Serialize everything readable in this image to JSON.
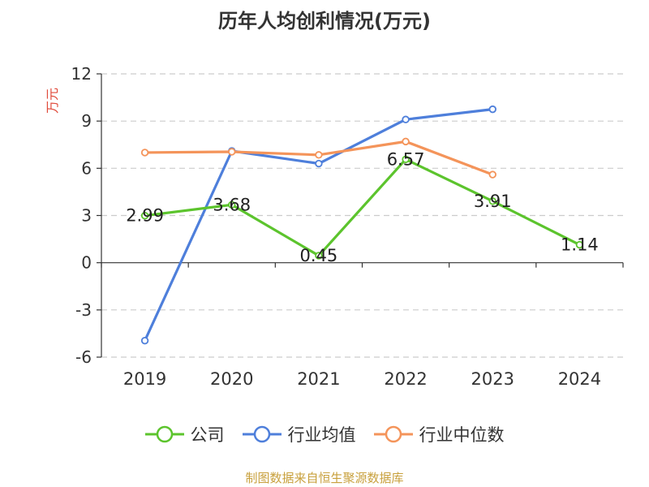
{
  "chart_data": {
    "type": "line",
    "title": "历年人均创利情况(万元)",
    "ylabel": "万元",
    "categories": [
      "2019",
      "2020",
      "2021",
      "2022",
      "2023",
      "2024"
    ],
    "ylim": [
      -6,
      12
    ],
    "yticks": [
      -6,
      -3,
      0,
      3,
      6,
      9,
      12
    ],
    "grid": true,
    "legend_position": "bottom",
    "series": [
      {
        "name": "公司",
        "color": "#5cc42d",
        "values": [
          2.99,
          3.68,
          0.45,
          6.57,
          3.91,
          1.14
        ],
        "labels": [
          "2.99",
          "3.68",
          "0.45",
          "6.57",
          "3.91",
          "1.14"
        ]
      },
      {
        "name": "行业均值",
        "color": "#4e7fdb",
        "values": [
          -4.95,
          7.1,
          6.3,
          9.1,
          9.75,
          null
        ]
      },
      {
        "name": "行业中位数",
        "color": "#f4945a",
        "values": [
          7.0,
          7.05,
          6.85,
          7.7,
          5.6,
          null
        ]
      }
    ]
  },
  "source": "制图数据来自恒生聚源数据库"
}
